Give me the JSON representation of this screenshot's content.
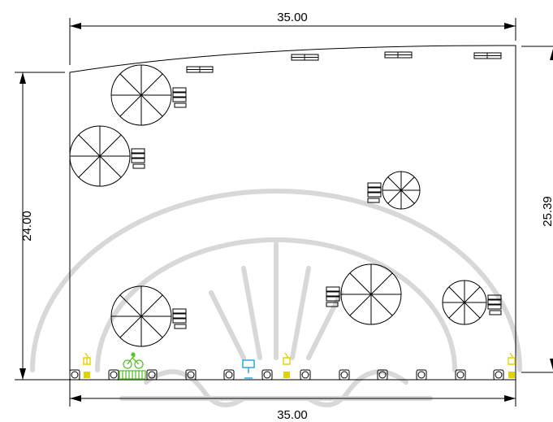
{
  "dimensions": {
    "top_width": "35.00",
    "bottom_width": "35.00",
    "left_height": "24.00",
    "right_height": "25.39"
  },
  "items": {
    "umbrella_tables": 6,
    "parasols_label": "umbrella-table",
    "fixtures_count": 12
  },
  "colors": {
    "outline": "#000000",
    "yellow_marker": "#e0d400",
    "green_bike": "#5bbf2e",
    "blue_sign": "#2aa7e0",
    "watermark": "#d8d8d8"
  }
}
